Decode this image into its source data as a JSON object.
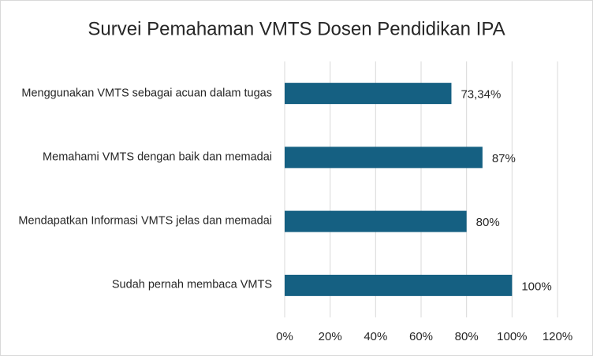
{
  "chart_data": {
    "type": "bar",
    "orientation": "horizontal",
    "title": "Survei Pemahaman VMTS Dosen Pendidikan IPA",
    "categories": [
      "Menggunakan VMTS sebagai acuan dalam tugas",
      "Memahami VMTS dengan baik dan memadai",
      "Mendapatkan Informasi VMTS jelas dan memadai",
      "Sudah pernah membaca VMTS"
    ],
    "values": [
      73.34,
      87,
      80,
      100
    ],
    "value_labels": [
      "73,34%",
      "87%",
      "80%",
      "100%"
    ],
    "color": "#156082",
    "xlim": [
      0,
      120
    ],
    "xticks": [
      {
        "value": 0,
        "label": "0%"
      },
      {
        "value": 20,
        "label": "20%"
      },
      {
        "value": 40,
        "label": "40%"
      },
      {
        "value": 60,
        "label": "60%"
      },
      {
        "value": 80,
        "label": "80%"
      },
      {
        "value": 100,
        "label": "100%"
      },
      {
        "value": 120,
        "label": "120%"
      }
    ],
    "grid": true
  }
}
